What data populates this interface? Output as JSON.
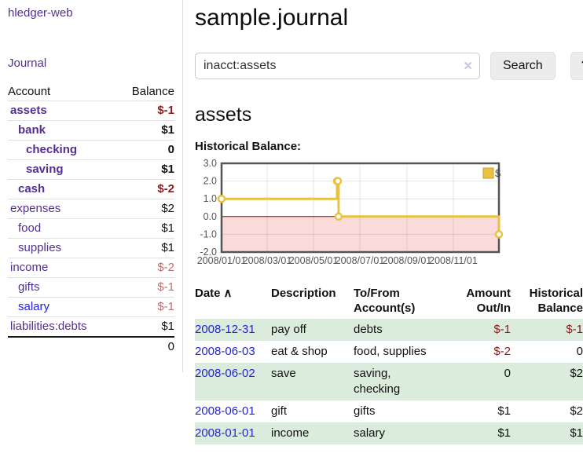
{
  "colors": {
    "link_purple": "#552e91",
    "link_blue": "#2323d6",
    "negative_strong": "#8b1a1a",
    "negative_muted": "#bd6d6d",
    "row_stripe_green": "#dcecdc",
    "chart_line_gold": "#e8c240",
    "chart_negative_region": "#fbdada",
    "chart_zero_line": "#8b0000",
    "chart_border": "#545454"
  },
  "sidebar": {
    "app_title": "hledger-web",
    "journal_label": "Journal",
    "accounts_table": {
      "headers": {
        "account": "Account",
        "balance": "Balance"
      },
      "rows": [
        {
          "name": "assets",
          "balance": "$-1",
          "level": 1,
          "bold": true,
          "balance_class": "neg-strong"
        },
        {
          "name": "bank",
          "balance": "$1",
          "level": 2,
          "bold": true,
          "balance_class": ""
        },
        {
          "name": "checking",
          "balance": "0",
          "level": 3,
          "bold": true,
          "balance_class": ""
        },
        {
          "name": "saving",
          "balance": "$1",
          "level": 3,
          "bold": true,
          "balance_class": ""
        },
        {
          "name": "cash",
          "balance": "$-2",
          "level": 2,
          "bold": true,
          "balance_class": "neg-strong"
        },
        {
          "name": "expenses",
          "balance": "$2",
          "level": 1,
          "bold": false,
          "balance_class": ""
        },
        {
          "name": "food",
          "balance": "$1",
          "level": 2,
          "bold": false,
          "balance_class": ""
        },
        {
          "name": "supplies",
          "balance": "$1",
          "level": 2,
          "bold": false,
          "balance_class": ""
        },
        {
          "name": "income",
          "balance": "$-2",
          "level": 1,
          "bold": false,
          "balance_class": "neg-muted"
        },
        {
          "name": "gifts",
          "balance": "$-1",
          "level": 2,
          "bold": false,
          "balance_class": "neg-muted"
        },
        {
          "name": "salary",
          "balance": "$-1",
          "level": 2,
          "bold": false,
          "balance_class": "neg-muted",
          "blue": true
        },
        {
          "name": "liabilities:debts",
          "balance": "$1",
          "level": 1,
          "bold": false,
          "balance_class": ""
        }
      ],
      "total": "0"
    }
  },
  "main": {
    "title": "sample.journal",
    "search": {
      "value": "inacct:assets",
      "clear_icon": "✕",
      "search_label": "Search",
      "help_label": "?"
    },
    "account_heading": "assets",
    "chart_label": "Historical Balance:"
  },
  "chart_data": {
    "type": "line",
    "step": true,
    "title": "Historical Balance",
    "series": [
      {
        "name": "$",
        "points": [
          [
            "2008-01-01",
            1
          ],
          [
            "2008-06-01",
            2
          ],
          [
            "2008-06-02",
            2
          ],
          [
            "2008-06-03",
            0
          ],
          [
            "2008-12-31",
            -1
          ]
        ]
      }
    ],
    "xlim": [
      "2008-01-01",
      "2008-12-31"
    ],
    "ylim": [
      -2,
      3
    ],
    "x_ticks": [
      "2008/01/01",
      "2008/03/01",
      "2008/05/01",
      "2008/07/01",
      "2008/09/01",
      "2008/11/01"
    ],
    "y_ticks": [
      "3.0",
      "2.0",
      "1.0",
      "0.0",
      "-1.0",
      "-2.0"
    ],
    "grid": true,
    "legend_position": "top-right",
    "legend_label": "$"
  },
  "register_table": {
    "headers": [
      {
        "label": "Date",
        "sort_icon": "∧"
      },
      {
        "label": "Description"
      },
      {
        "label": "To/From\nAccount(s)"
      },
      {
        "label": "Amount\nOut/In",
        "align": "right"
      },
      {
        "label": "Historical\nBalance",
        "align": "right"
      }
    ],
    "rows": [
      {
        "date": "2008-12-31",
        "description": "pay off",
        "accounts": "debts",
        "amount": "$-1",
        "amount_negative": true,
        "balance": "$-1",
        "balance_negative": true
      },
      {
        "date": "2008-06-03",
        "description": "eat & shop",
        "accounts": "food, supplies",
        "amount": "$-2",
        "amount_negative": true,
        "balance": "0",
        "balance_negative": false
      },
      {
        "date": "2008-06-02",
        "description": "save",
        "accounts": "saving,\nchecking",
        "amount": "0",
        "amount_negative": false,
        "balance": "$2",
        "balance_negative": false
      },
      {
        "date": "2008-06-01",
        "description": "gift",
        "accounts": "gifts",
        "amount": "$1",
        "amount_negative": false,
        "balance": "$2",
        "balance_negative": false
      },
      {
        "date": "2008-01-01",
        "description": "income",
        "accounts": "salary",
        "amount": "$1",
        "amount_negative": false,
        "balance": "$1",
        "balance_negative": false
      }
    ]
  }
}
